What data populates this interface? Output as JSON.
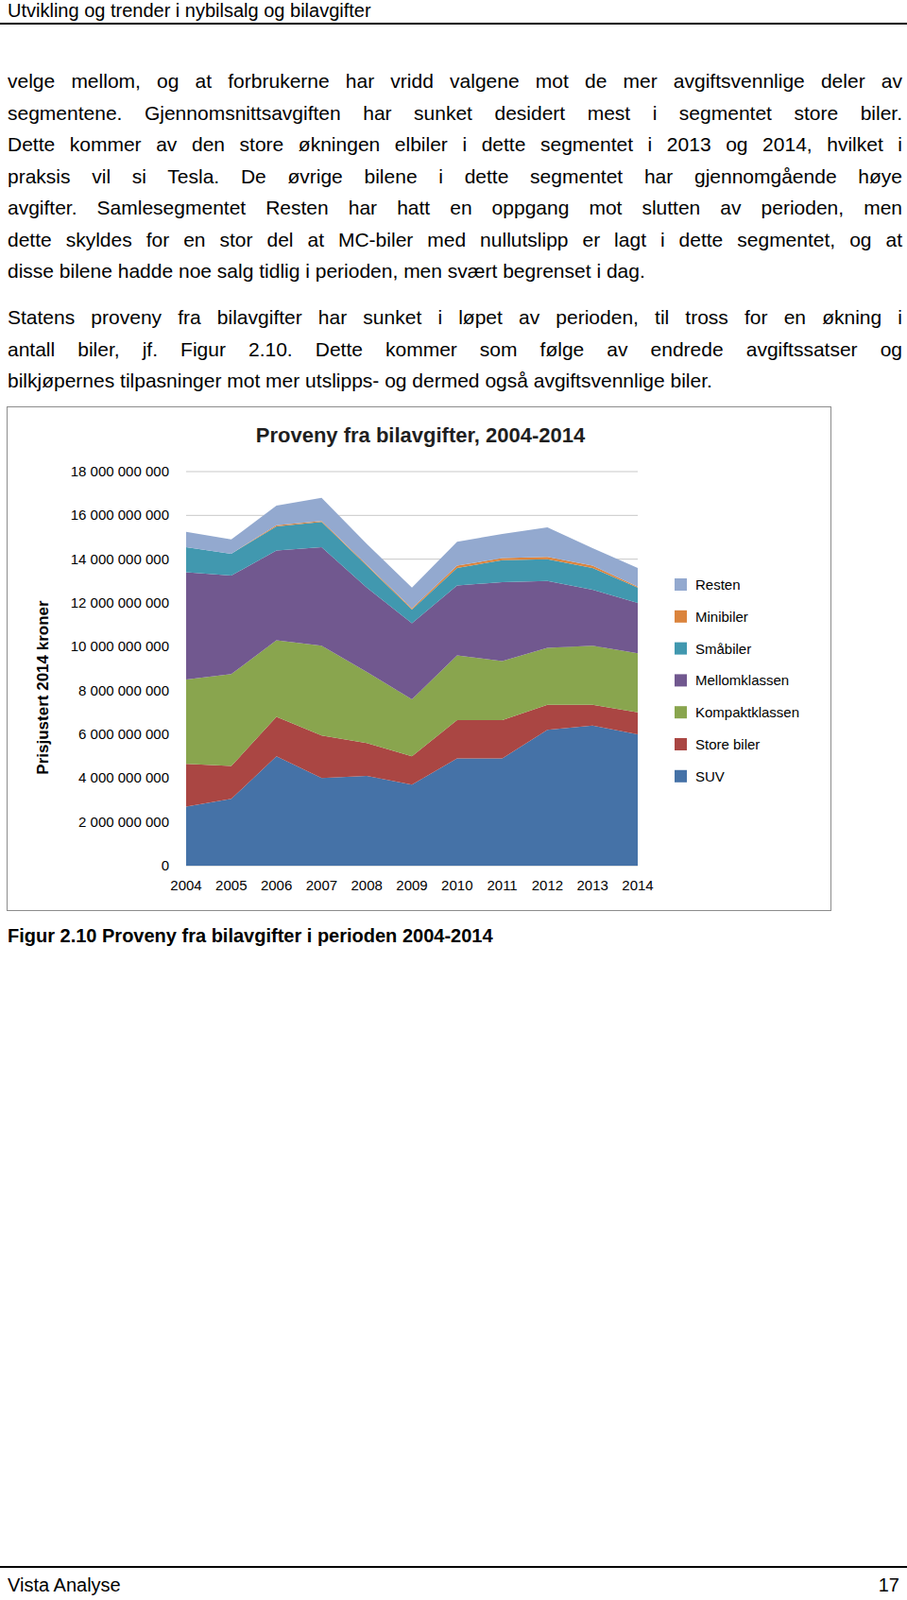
{
  "header": {
    "title": "Utvikling og trender i nybilsalg og bilavgifter"
  },
  "paragraphs": [
    {
      "lines": [
        "velge mellom, og at forbrukerne har vridd valgene mot de mer avgiftsvennlige deler av",
        "segmentene. Gjennomsnittsavgiften har sunket desidert mest i segmentet store biler.",
        "Dette kommer av den store økningen elbiler i dette segmentet i 2013 og 2014, hvilket i",
        "praksis vil si Tesla. De øvrige bilene i dette segmentet har gjennomgående høye",
        "avgifter. Samlesegmentet Resten har hatt en oppgang mot slutten av perioden, men",
        "dette skyldes for en stor del at MC-biler med nullutslipp er lagt i dette segmentet, og at",
        "disse bilene hadde noe salg tidlig i perioden, men svært begrenset i dag."
      ]
    },
    {
      "lines": [
        "Statens proveny fra bilavgifter har sunket i løpet av perioden, til tross for en økning i",
        "antall biler, jf. Figur 2.10. Dette kommer som følge av endrede avgiftssatser og",
        "bilkjøpernes tilpasninger mot mer utslipps- og dermed også avgiftsvennlige biler."
      ]
    }
  ],
  "chart_data": {
    "type": "area",
    "stacked": true,
    "grid": true,
    "legend": "right",
    "title": "Proveny fra bilavgifter, 2004-2014",
    "y_label": "Prisjustert 2014 kroner",
    "categories": [
      "2004",
      "2005",
      "2006",
      "2007",
      "2008",
      "2009",
      "2010",
      "2011",
      "2012",
      "2013",
      "2014"
    ],
    "ylim": [
      0,
      18000000000
    ],
    "yticks": [
      0,
      {
        "value": 2000000000,
        "label": "2 000 000 000"
      },
      {
        "value": 4000000000,
        "label": "4 000 000 000"
      },
      {
        "value": 6000000000,
        "label": "6 000 000 000"
      },
      {
        "value": 8000000000,
        "label": "8 000 000 000"
      },
      {
        "value": 10000000000,
        "label": "10 000 000 000"
      },
      {
        "value": 12000000000,
        "label": "12 000 000 000"
      },
      {
        "value": 14000000000,
        "label": "14 000 000 000"
      },
      {
        "value": 16000000000,
        "label": "16 000 000 000"
      },
      {
        "value": 18000000000,
        "label": "18 000 000 000"
      }
    ],
    "series": [
      {
        "name": "SUV",
        "color": "#4572a7",
        "values": [
          2700000000,
          3050000000,
          5000000000,
          4000000000,
          4100000000,
          3700000000,
          4900000000,
          4900000000,
          6200000000,
          6400000000,
          6000000000
        ]
      },
      {
        "name": "Store biler",
        "color": "#aa4643",
        "values": [
          1950000000,
          1500000000,
          1800000000,
          1950000000,
          1500000000,
          1300000000,
          1750000000,
          1750000000,
          1150000000,
          950000000,
          1000000000
        ]
      },
      {
        "name": "Kompaktklassen",
        "color": "#89a54e",
        "values": [
          3850000000,
          4200000000,
          3500000000,
          4100000000,
          3250000000,
          2600000000,
          2950000000,
          2700000000,
          2600000000,
          2700000000,
          2700000000
        ]
      },
      {
        "name": "Mellomklassen",
        "color": "#71588f",
        "values": [
          4900000000,
          4500000000,
          4100000000,
          4500000000,
          3850000000,
          3470000000,
          3200000000,
          3600000000,
          3050000000,
          2550000000,
          2300000000
        ]
      },
      {
        "name": "Småbiler",
        "color": "#4198af",
        "values": [
          1150000000,
          1000000000,
          1100000000,
          1150000000,
          1000000000,
          630000000,
          800000000,
          1000000000,
          1000000000,
          1000000000,
          700000000
        ]
      },
      {
        "name": "Minibiler",
        "color": "#db843d",
        "values": [
          0,
          0,
          50000000,
          50000000,
          50000000,
          50000000,
          100000000,
          100000000,
          100000000,
          100000000,
          50000000
        ]
      },
      {
        "name": "Resten",
        "color": "#93a9cf",
        "values": [
          700000000,
          650000000,
          900000000,
          1050000000,
          950000000,
          950000000,
          1100000000,
          1100000000,
          1350000000,
          800000000,
          850000000
        ]
      }
    ]
  },
  "caption": "Figur 2.10 Proveny fra bilavgifter i perioden 2004-2014",
  "footer": {
    "left": "Vista Analyse",
    "page": 17
  }
}
